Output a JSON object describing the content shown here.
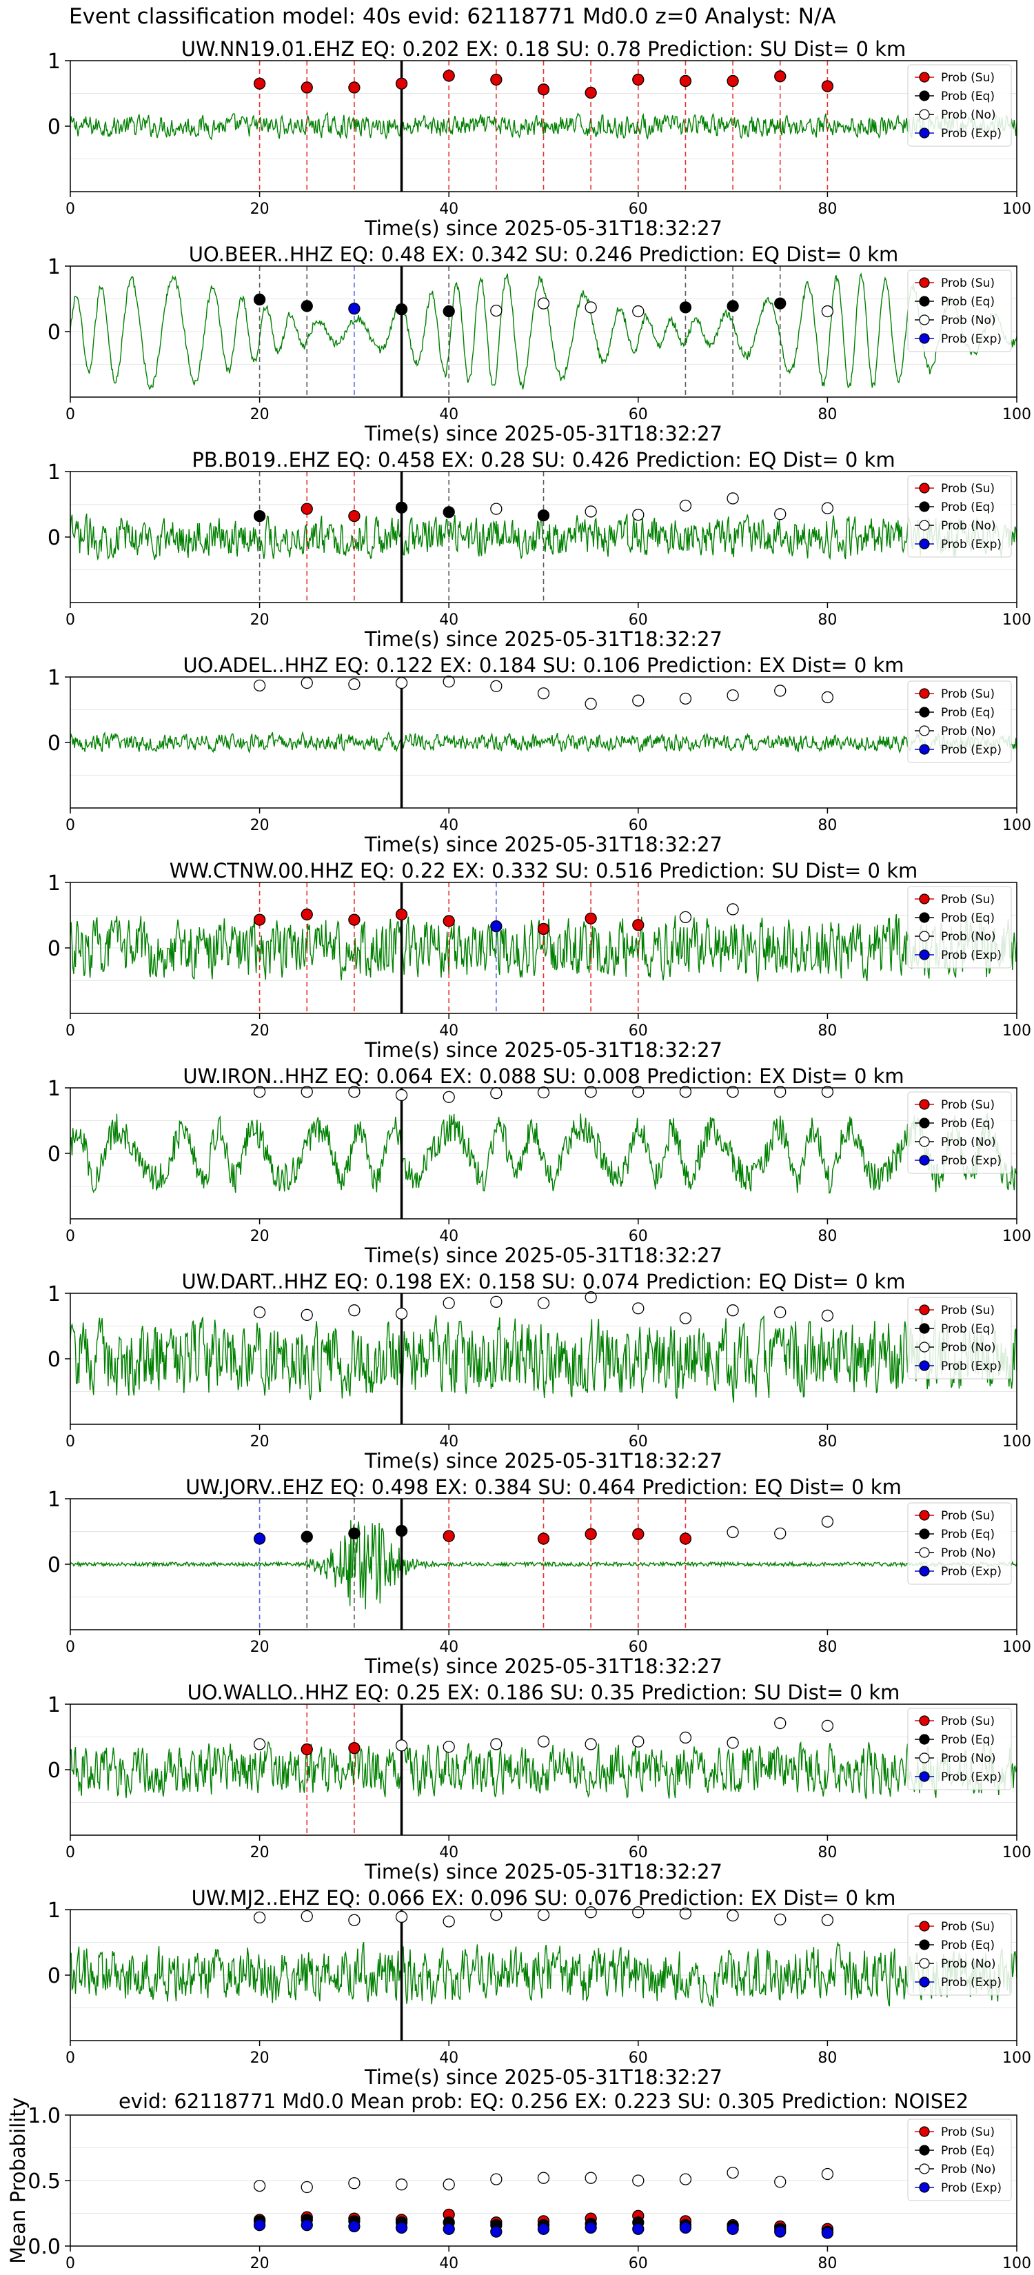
{
  "figure": {
    "suptitle": "Event classification model: 40s evid: 62118771 Md0.0 z=0 Analyst: N/A",
    "x_label": "Time(s) since 2025-05-31T18:32:27",
    "x_ticks": [
      0,
      20,
      40,
      60,
      80,
      100
    ],
    "wave_y_ticks": [
      "1",
      "0"
    ],
    "mean_y_ticks": [
      "0.0",
      "0.5",
      "1.0"
    ],
    "mean_ylabel": "Mean Probability",
    "legend": [
      "Prob (Su)",
      "Prob (Eq)",
      "Prob (No)",
      "Prob (Exp)"
    ],
    "colors": {
      "su": "#e00000",
      "eq": "#000000",
      "no": "#ffffff",
      "exp": "#0000dd",
      "wave": "#008000"
    }
  },
  "chart_data": [
    {
      "type": "line",
      "title": "UW.NN19.01.EHZ   EQ: 0.202  EX: 0.18  SU: 0.78   Prediction: SU    Dist= 0 km",
      "xlim": [
        0,
        100
      ],
      "ylim": [
        -1,
        1
      ],
      "event_time": 35,
      "points": [
        {
          "t": 20,
          "p": 0.65,
          "c": "su"
        },
        {
          "t": 25,
          "p": 0.59,
          "c": "su"
        },
        {
          "t": 30,
          "p": 0.59,
          "c": "su"
        },
        {
          "t": 35,
          "p": 0.65,
          "c": "su"
        },
        {
          "t": 40,
          "p": 0.77,
          "c": "su"
        },
        {
          "t": 45,
          "p": 0.71,
          "c": "su"
        },
        {
          "t": 50,
          "p": 0.56,
          "c": "su"
        },
        {
          "t": 55,
          "p": 0.51,
          "c": "su"
        },
        {
          "t": 60,
          "p": 0.71,
          "c": "su"
        },
        {
          "t": 65,
          "p": 0.69,
          "c": "su"
        },
        {
          "t": 70,
          "p": 0.69,
          "c": "su"
        },
        {
          "t": 75,
          "p": 0.76,
          "c": "su"
        },
        {
          "t": 80,
          "p": 0.61,
          "c": "su"
        }
      ]
    },
    {
      "type": "line",
      "title": "UO.BEER..HHZ   EQ: 0.48  EX: 0.342  SU: 0.246   Prediction: EQ    Dist= 0 km",
      "xlim": [
        0,
        100
      ],
      "ylim": [
        -1,
        1
      ],
      "event_time": 35,
      "points": [
        {
          "t": 20,
          "p": 0.49,
          "c": "eq"
        },
        {
          "t": 25,
          "p": 0.39,
          "c": "eq"
        },
        {
          "t": 30,
          "p": 0.35,
          "c": "exp"
        },
        {
          "t": 35,
          "p": 0.34,
          "c": "eq"
        },
        {
          "t": 40,
          "p": 0.31,
          "c": "eq"
        },
        {
          "t": 45,
          "p": 0.32,
          "c": "no"
        },
        {
          "t": 50,
          "p": 0.43,
          "c": "no"
        },
        {
          "t": 55,
          "p": 0.37,
          "c": "no"
        },
        {
          "t": 60,
          "p": 0.31,
          "c": "no"
        },
        {
          "t": 65,
          "p": 0.37,
          "c": "eq"
        },
        {
          "t": 70,
          "p": 0.39,
          "c": "eq"
        },
        {
          "t": 75,
          "p": 0.43,
          "c": "eq"
        },
        {
          "t": 80,
          "p": 0.31,
          "c": "no"
        }
      ]
    },
    {
      "type": "line",
      "title": "PB.B019..EHZ   EQ: 0.458  EX: 0.28  SU: 0.426   Prediction: EQ    Dist= 0 km",
      "xlim": [
        0,
        100
      ],
      "ylim": [
        -1,
        1
      ],
      "event_time": 35,
      "points": [
        {
          "t": 20,
          "p": 0.32,
          "c": "eq"
        },
        {
          "t": 25,
          "p": 0.43,
          "c": "su"
        },
        {
          "t": 30,
          "p": 0.32,
          "c": "su"
        },
        {
          "t": 35,
          "p": 0.45,
          "c": "eq"
        },
        {
          "t": 40,
          "p": 0.38,
          "c": "eq"
        },
        {
          "t": 45,
          "p": 0.43,
          "c": "no"
        },
        {
          "t": 50,
          "p": 0.33,
          "c": "eq"
        },
        {
          "t": 55,
          "p": 0.39,
          "c": "no"
        },
        {
          "t": 60,
          "p": 0.34,
          "c": "no"
        },
        {
          "t": 65,
          "p": 0.48,
          "c": "no"
        },
        {
          "t": 70,
          "p": 0.59,
          "c": "no"
        },
        {
          "t": 75,
          "p": 0.35,
          "c": "no"
        },
        {
          "t": 80,
          "p": 0.44,
          "c": "no"
        }
      ]
    },
    {
      "type": "line",
      "title": "UO.ADEL..HHZ   EQ: 0.122  EX: 0.184  SU: 0.106   Prediction: EX    Dist= 0 km",
      "xlim": [
        0,
        100
      ],
      "ylim": [
        -1,
        1
      ],
      "event_time": 35,
      "points": [
        {
          "t": 20,
          "p": 0.87,
          "c": "no"
        },
        {
          "t": 25,
          "p": 0.91,
          "c": "no"
        },
        {
          "t": 30,
          "p": 0.89,
          "c": "no"
        },
        {
          "t": 35,
          "p": 0.91,
          "c": "no"
        },
        {
          "t": 40,
          "p": 0.93,
          "c": "no"
        },
        {
          "t": 45,
          "p": 0.86,
          "c": "no"
        },
        {
          "t": 50,
          "p": 0.75,
          "c": "no"
        },
        {
          "t": 55,
          "p": 0.59,
          "c": "no"
        },
        {
          "t": 60,
          "p": 0.64,
          "c": "no"
        },
        {
          "t": 65,
          "p": 0.67,
          "c": "no"
        },
        {
          "t": 70,
          "p": 0.72,
          "c": "no"
        },
        {
          "t": 75,
          "p": 0.79,
          "c": "no"
        },
        {
          "t": 80,
          "p": 0.69,
          "c": "no"
        }
      ]
    },
    {
      "type": "line",
      "title": "WW.CTNW.00.HHZ   EQ: 0.22  EX: 0.332  SU: 0.516   Prediction: SU    Dist= 0 km",
      "xlim": [
        0,
        100
      ],
      "ylim": [
        -1,
        1
      ],
      "event_time": 35,
      "points": [
        {
          "t": 20,
          "p": 0.43,
          "c": "su"
        },
        {
          "t": 25,
          "p": 0.51,
          "c": "su"
        },
        {
          "t": 30,
          "p": 0.43,
          "c": "su"
        },
        {
          "t": 35,
          "p": 0.51,
          "c": "su"
        },
        {
          "t": 40,
          "p": 0.41,
          "c": "su"
        },
        {
          "t": 45,
          "p": 0.33,
          "c": "exp"
        },
        {
          "t": 50,
          "p": 0.29,
          "c": "su"
        },
        {
          "t": 55,
          "p": 0.45,
          "c": "su"
        },
        {
          "t": 60,
          "p": 0.35,
          "c": "su"
        },
        {
          "t": 65,
          "p": 0.47,
          "c": "no"
        },
        {
          "t": 70,
          "p": 0.59,
          "c": "no"
        }
      ]
    },
    {
      "type": "line",
      "title": "UW.IRON..HHZ   EQ: 0.064  EX: 0.088  SU: 0.008   Prediction: EX    Dist= 0 km",
      "xlim": [
        0,
        100
      ],
      "ylim": [
        -1,
        1
      ],
      "event_time": 35,
      "points": [
        {
          "t": 20,
          "p": 0.94,
          "c": "no"
        },
        {
          "t": 25,
          "p": 0.94,
          "c": "no"
        },
        {
          "t": 30,
          "p": 0.94,
          "c": "no"
        },
        {
          "t": 35,
          "p": 0.89,
          "c": "no"
        },
        {
          "t": 40,
          "p": 0.86,
          "c": "no"
        },
        {
          "t": 45,
          "p": 0.92,
          "c": "no"
        },
        {
          "t": 50,
          "p": 0.93,
          "c": "no"
        },
        {
          "t": 55,
          "p": 0.94,
          "c": "no"
        },
        {
          "t": 60,
          "p": 0.94,
          "c": "no"
        },
        {
          "t": 65,
          "p": 0.94,
          "c": "no"
        },
        {
          "t": 70,
          "p": 0.94,
          "c": "no"
        },
        {
          "t": 75,
          "p": 0.94,
          "c": "no"
        },
        {
          "t": 80,
          "p": 0.94,
          "c": "no"
        }
      ]
    },
    {
      "type": "line",
      "title": "UW.DART..HHZ   EQ: 0.198  EX: 0.158  SU: 0.074   Prediction: EQ    Dist= 0 km",
      "xlim": [
        0,
        100
      ],
      "ylim": [
        -1,
        1
      ],
      "event_time": 35,
      "points": [
        {
          "t": 20,
          "p": 0.71,
          "c": "no"
        },
        {
          "t": 25,
          "p": 0.67,
          "c": "no"
        },
        {
          "t": 30,
          "p": 0.74,
          "c": "no"
        },
        {
          "t": 35,
          "p": 0.69,
          "c": "no"
        },
        {
          "t": 40,
          "p": 0.85,
          "c": "no"
        },
        {
          "t": 45,
          "p": 0.87,
          "c": "no"
        },
        {
          "t": 50,
          "p": 0.85,
          "c": "no"
        },
        {
          "t": 55,
          "p": 0.94,
          "c": "no"
        },
        {
          "t": 60,
          "p": 0.77,
          "c": "no"
        },
        {
          "t": 65,
          "p": 0.62,
          "c": "no"
        },
        {
          "t": 70,
          "p": 0.74,
          "c": "no"
        },
        {
          "t": 75,
          "p": 0.71,
          "c": "no"
        },
        {
          "t": 80,
          "p": 0.66,
          "c": "no"
        }
      ]
    },
    {
      "type": "line",
      "title": "UW.JORV..EHZ   EQ: 0.498  EX: 0.384  SU: 0.464   Prediction: EQ    Dist= 0 km",
      "xlim": [
        0,
        100
      ],
      "ylim": [
        -1,
        1
      ],
      "event_time": 35,
      "points": [
        {
          "t": 20,
          "p": 0.39,
          "c": "exp"
        },
        {
          "t": 25,
          "p": 0.42,
          "c": "eq"
        },
        {
          "t": 30,
          "p": 0.47,
          "c": "eq"
        },
        {
          "t": 35,
          "p": 0.51,
          "c": "eq"
        },
        {
          "t": 40,
          "p": 0.43,
          "c": "su"
        },
        {
          "t": 50,
          "p": 0.39,
          "c": "su"
        },
        {
          "t": 55,
          "p": 0.46,
          "c": "su"
        },
        {
          "t": 60,
          "p": 0.46,
          "c": "su"
        },
        {
          "t": 65,
          "p": 0.39,
          "c": "su"
        },
        {
          "t": 70,
          "p": 0.49,
          "c": "no"
        },
        {
          "t": 75,
          "p": 0.47,
          "c": "no"
        },
        {
          "t": 80,
          "p": 0.65,
          "c": "no"
        }
      ]
    },
    {
      "type": "line",
      "title": "UO.WALLO..HHZ   EQ: 0.25  EX: 0.186  SU: 0.35   Prediction: SU    Dist= 0 km",
      "xlim": [
        0,
        100
      ],
      "ylim": [
        -1,
        1
      ],
      "event_time": 35,
      "points": [
        {
          "t": 20,
          "p": 0.39,
          "c": "no"
        },
        {
          "t": 25,
          "p": 0.31,
          "c": "su"
        },
        {
          "t": 30,
          "p": 0.33,
          "c": "su"
        },
        {
          "t": 35,
          "p": 0.37,
          "c": "no"
        },
        {
          "t": 40,
          "p": 0.35,
          "c": "no"
        },
        {
          "t": 45,
          "p": 0.39,
          "c": "no"
        },
        {
          "t": 50,
          "p": 0.43,
          "c": "no"
        },
        {
          "t": 55,
          "p": 0.39,
          "c": "no"
        },
        {
          "t": 60,
          "p": 0.43,
          "c": "no"
        },
        {
          "t": 65,
          "p": 0.49,
          "c": "no"
        },
        {
          "t": 70,
          "p": 0.41,
          "c": "no"
        },
        {
          "t": 75,
          "p": 0.71,
          "c": "no"
        },
        {
          "t": 80,
          "p": 0.67,
          "c": "no"
        }
      ]
    },
    {
      "type": "line",
      "title": "UW.MJ2..EHZ   EQ: 0.066  EX: 0.096  SU: 0.076   Prediction: EX    Dist= 0 km",
      "xlim": [
        0,
        100
      ],
      "ylim": [
        -1,
        1
      ],
      "event_time": 35,
      "points": [
        {
          "t": 20,
          "p": 0.88,
          "c": "no"
        },
        {
          "t": 25,
          "p": 0.9,
          "c": "no"
        },
        {
          "t": 30,
          "p": 0.84,
          "c": "no"
        },
        {
          "t": 35,
          "p": 0.89,
          "c": "no"
        },
        {
          "t": 40,
          "p": 0.82,
          "c": "no"
        },
        {
          "t": 45,
          "p": 0.92,
          "c": "no"
        },
        {
          "t": 50,
          "p": 0.92,
          "c": "no"
        },
        {
          "t": 55,
          "p": 0.96,
          "c": "no"
        },
        {
          "t": 60,
          "p": 0.96,
          "c": "no"
        },
        {
          "t": 65,
          "p": 0.94,
          "c": "no"
        },
        {
          "t": 70,
          "p": 0.91,
          "c": "no"
        },
        {
          "t": 75,
          "p": 0.85,
          "c": "no"
        },
        {
          "t": 80,
          "p": 0.84,
          "c": "no"
        }
      ]
    },
    {
      "type": "scatter",
      "title": "evid: 62118771  Md0.0   Mean prob:   EQ: 0.256  EX: 0.223  SU: 0.305   Prediction: NOISE2",
      "xlim": [
        0,
        100
      ],
      "ylim": [
        0,
        1
      ],
      "x": [
        20,
        25,
        30,
        35,
        40,
        45,
        50,
        55,
        60,
        65,
        70,
        75,
        80
      ],
      "series": [
        {
          "name": "Prob (No)",
          "key": "no",
          "values": [
            0.46,
            0.45,
            0.48,
            0.47,
            0.47,
            0.51,
            0.52,
            0.52,
            0.5,
            0.51,
            0.56,
            0.49,
            0.55
          ]
        },
        {
          "name": "Prob (Su)",
          "key": "su",
          "values": [
            0.2,
            0.22,
            0.21,
            0.2,
            0.24,
            0.18,
            0.19,
            0.21,
            0.23,
            0.19,
            0.16,
            0.15,
            0.13
          ]
        },
        {
          "name": "Prob (Eq)",
          "key": "eq",
          "values": [
            0.19,
            0.2,
            0.19,
            0.18,
            0.18,
            0.16,
            0.16,
            0.17,
            0.18,
            0.16,
            0.15,
            0.13,
            0.11
          ]
        },
        {
          "name": "Prob (Exp)",
          "key": "exp",
          "values": [
            0.16,
            0.16,
            0.15,
            0.14,
            0.13,
            0.11,
            0.13,
            0.14,
            0.13,
            0.14,
            0.13,
            0.11,
            0.1
          ]
        }
      ]
    }
  ]
}
